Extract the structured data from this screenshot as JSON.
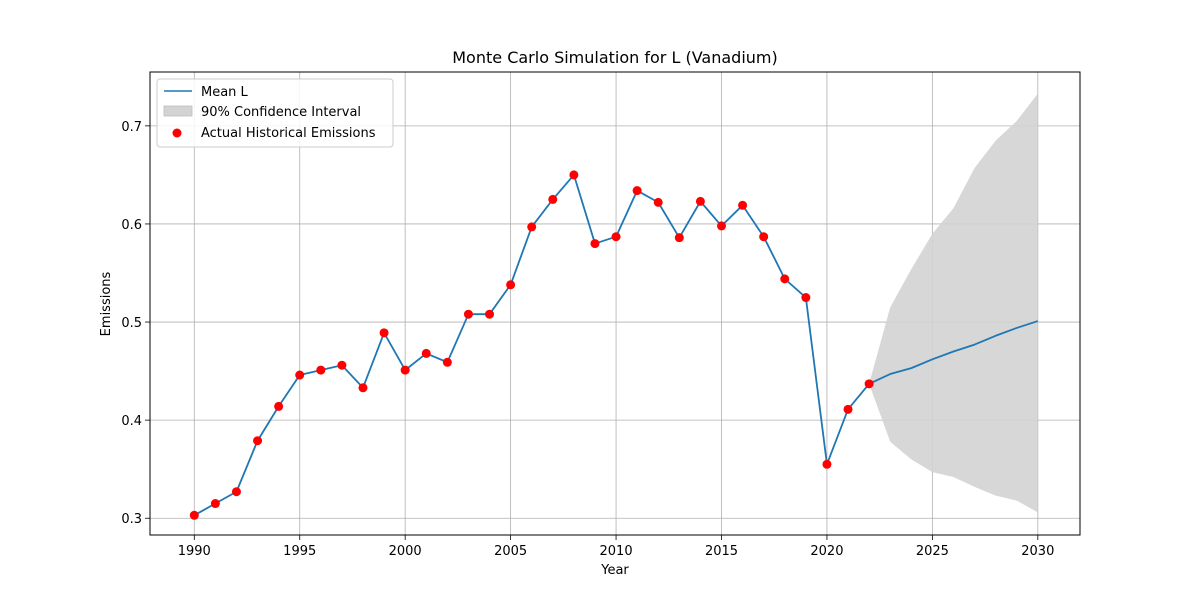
{
  "chart_data": {
    "type": "line",
    "title": "Monte Carlo Simulation for L (Vanadium)",
    "xlabel": "Year",
    "ylabel": "Emissions",
    "xlim": [
      1987.9,
      2032
    ],
    "ylim": [
      0.2829,
      0.7549
    ],
    "x_ticks": [
      1990,
      1995,
      2000,
      2005,
      2010,
      2015,
      2020,
      2025,
      2030
    ],
    "y_ticks": [
      0.3,
      0.4,
      0.5,
      0.6,
      0.7
    ],
    "grid": true,
    "legend_placement": "top-left",
    "legend": {
      "mean": "Mean L",
      "ci": "90% Confidence Interval",
      "actual": "Actual Historical Emissions"
    },
    "colors": {
      "mean": "#1f77b4",
      "ci": "#d3d3d3",
      "actual": "#ff0000"
    },
    "mean": {
      "name": "Mean L",
      "x": [
        1990,
        1991,
        1992,
        1993,
        1994,
        1995,
        1996,
        1997,
        1998,
        1999,
        2000,
        2001,
        2002,
        2003,
        2004,
        2005,
        2006,
        2007,
        2008,
        2009,
        2010,
        2011,
        2012,
        2013,
        2014,
        2015,
        2016,
        2017,
        2018,
        2019,
        2020,
        2021,
        2022,
        2023,
        2024,
        2025,
        2026,
        2027,
        2028,
        2029,
        2030
      ],
      "y": [
        0.303,
        0.315,
        0.327,
        0.379,
        0.414,
        0.446,
        0.451,
        0.456,
        0.433,
        0.489,
        0.451,
        0.468,
        0.459,
        0.508,
        0.508,
        0.538,
        0.597,
        0.625,
        0.65,
        0.58,
        0.587,
        0.634,
        0.622,
        0.586,
        0.623,
        0.598,
        0.619,
        0.587,
        0.544,
        0.525,
        0.355,
        0.411,
        0.437,
        0.447,
        0.453,
        0.462,
        0.47,
        0.477,
        0.486,
        0.494,
        0.501
      ]
    },
    "actual": {
      "name": "Actual Historical Emissions",
      "x": [
        1990,
        1991,
        1992,
        1993,
        1994,
        1995,
        1996,
        1997,
        1998,
        1999,
        2000,
        2001,
        2002,
        2003,
        2004,
        2005,
        2006,
        2007,
        2008,
        2009,
        2010,
        2011,
        2012,
        2013,
        2014,
        2015,
        2016,
        2017,
        2018,
        2019,
        2020,
        2021,
        2022
      ],
      "y": [
        0.303,
        0.315,
        0.327,
        0.379,
        0.414,
        0.446,
        0.451,
        0.456,
        0.433,
        0.489,
        0.451,
        0.468,
        0.459,
        0.508,
        0.508,
        0.538,
        0.597,
        0.625,
        0.65,
        0.58,
        0.587,
        0.634,
        0.622,
        0.586,
        0.623,
        0.598,
        0.619,
        0.587,
        0.544,
        0.525,
        0.355,
        0.411,
        0.437
      ]
    },
    "confidence_interval": {
      "name": "90% Confidence Interval",
      "x": [
        2022,
        2023,
        2024,
        2025,
        2026,
        2027,
        2028,
        2029,
        2030
      ],
      "lower": [
        0.437,
        0.378,
        0.36,
        0.347,
        0.342,
        0.332,
        0.323,
        0.318,
        0.306
      ],
      "upper": [
        0.437,
        0.515,
        0.554,
        0.59,
        0.616,
        0.657,
        0.685,
        0.705,
        0.733
      ]
    }
  }
}
